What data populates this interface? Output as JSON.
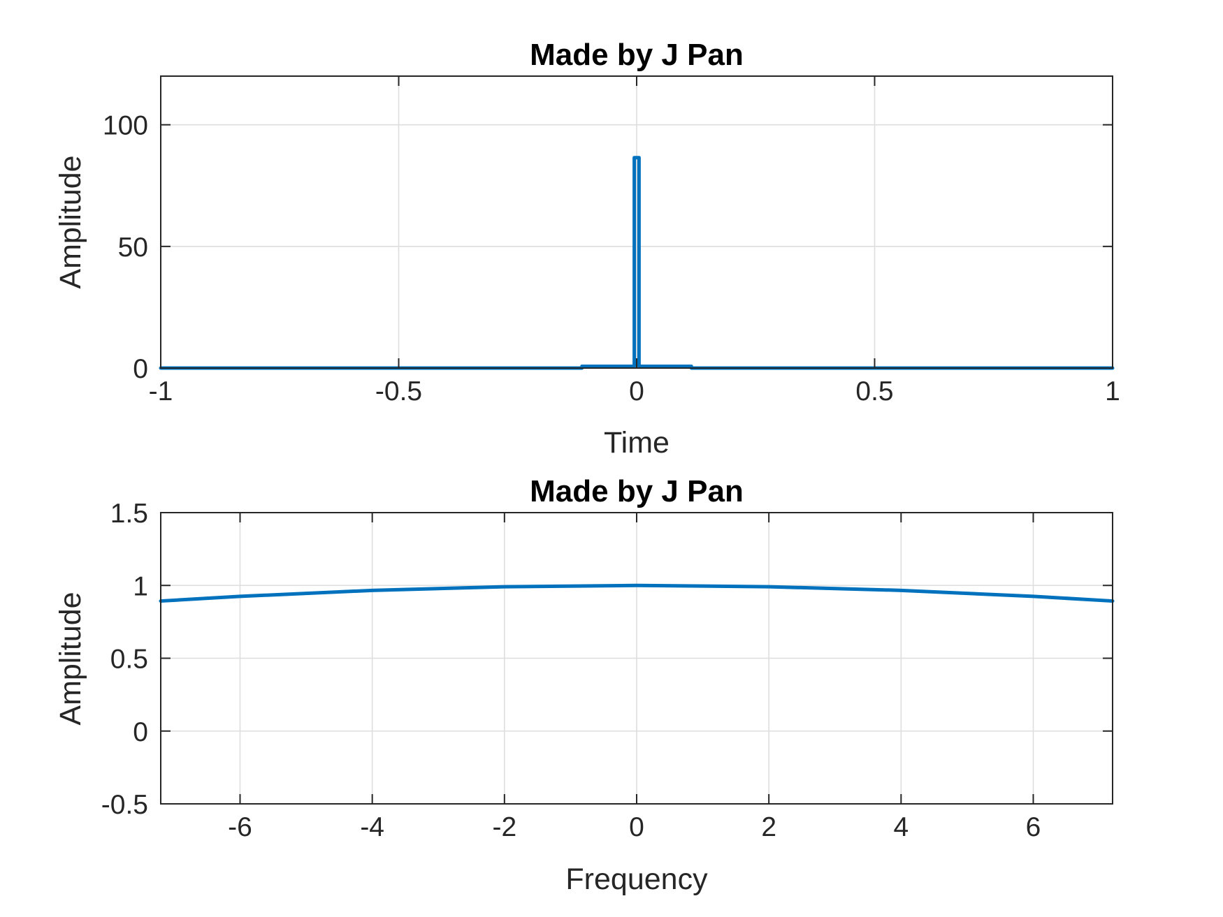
{
  "colors": {
    "series": "#0072BD",
    "axes": "#262626",
    "grid": "#dedede",
    "background": "#ffffff"
  },
  "chart_data": [
    {
      "type": "line",
      "title": "Made by J Pan",
      "xlabel": "Time",
      "ylabel": "Amplitude",
      "xlim": [
        -1,
        1
      ],
      "ylim": [
        0,
        120
      ],
      "grid": true,
      "legend": "none",
      "x_ticks": [
        -1,
        -0.5,
        0,
        0.5,
        1
      ],
      "x_tick_labels": [
        "-1",
        "-0.5",
        "0",
        "0.5",
        "1"
      ],
      "y_ticks": [
        0,
        50,
        100
      ],
      "y_tick_labels": [
        "0",
        "50",
        "100"
      ],
      "series": [
        {
          "x": [
            -1,
            -0.115,
            -0.115,
            -0.005,
            -0.005,
            0.005,
            0.005,
            0.115,
            0.115,
            1
          ],
          "y": [
            0,
            0,
            0.7,
            0.7,
            86.5,
            86.5,
            0.7,
            0.7,
            0,
            0
          ],
          "color": "#0072BD"
        }
      ]
    },
    {
      "type": "line",
      "title": "Made by J Pan",
      "xlabel": "Frequency",
      "ylabel": "Amplitude",
      "xlim": [
        -7.2,
        7.2
      ],
      "ylim": [
        -0.5,
        1.5
      ],
      "grid": true,
      "legend": "none",
      "x_ticks": [
        -6,
        -4,
        -2,
        0,
        2,
        4,
        6
      ],
      "x_tick_labels": [
        "-6",
        "-4",
        "-2",
        "0",
        "2",
        "4",
        "6"
      ],
      "y_ticks": [
        -0.5,
        0,
        0.5,
        1,
        1.5
      ],
      "y_tick_labels": [
        "-0.5",
        "0",
        "0.5",
        "1",
        "1.5"
      ],
      "series": [
        {
          "x": [
            -7.2,
            -6,
            -4,
            -2,
            0,
            2,
            4,
            6,
            7.2
          ],
          "y": [
            0.893,
            0.925,
            0.966,
            0.991,
            1.0,
            0.991,
            0.966,
            0.925,
            0.893
          ],
          "color": "#0072BD"
        }
      ]
    }
  ]
}
